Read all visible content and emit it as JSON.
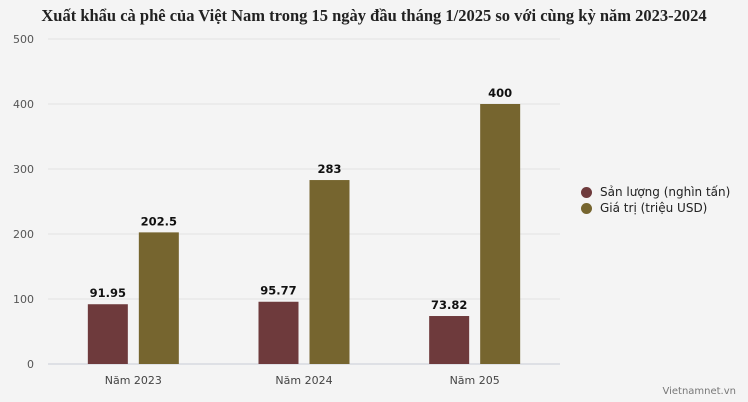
{
  "chart_data": {
    "type": "bar",
    "title": "Xuất khẩu cà phê của Việt Nam trong 15 ngày đầu tháng 1/2025 so với cùng kỳ năm 2023-2024",
    "categories": [
      "Năm 2023",
      "Năm 2024",
      "Năm 205"
    ],
    "series": [
      {
        "name": "Sản lượng (nghìn tấn)",
        "values": [
          91.95,
          95.77,
          73.82
        ],
        "labels": [
          "91.95",
          "95.77",
          "73.82"
        ],
        "color": "#6e3a3c"
      },
      {
        "name": "Giá trị (triệu USD)",
        "values": [
          202.5,
          283,
          400
        ],
        "labels": [
          "202.5",
          "283",
          "400"
        ],
        "color": "#76652f"
      }
    ],
    "ylim": [
      0,
      500
    ],
    "yticks": [
      0,
      100,
      200,
      300,
      400,
      500
    ],
    "grid": true,
    "legend": "right",
    "xlabel": "",
    "ylabel": ""
  },
  "credit": "Vietnamnet.vn"
}
